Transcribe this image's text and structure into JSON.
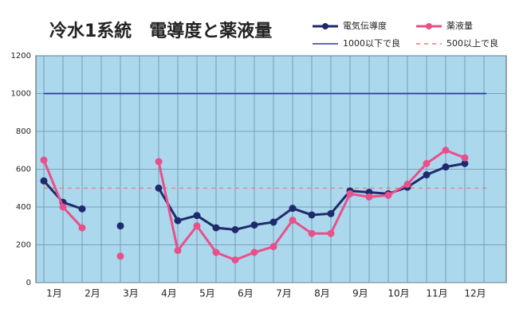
{
  "chart_data": {
    "type": "line",
    "title": "冷水1系統　電導度と薬液量",
    "categories": [
      "1月",
      null,
      "2月",
      null,
      "3月",
      null,
      "4月",
      null,
      "5月",
      null,
      "6月",
      null,
      "7月",
      null,
      "8月",
      null,
      "9月",
      null,
      "10月",
      null,
      "11月",
      null,
      "12月",
      null
    ],
    "series": [
      {
        "name": "電気伝導度",
        "color": "#1f2a6b",
        "values": [
          538,
          425,
          390,
          null,
          300,
          null,
          500,
          328,
          355,
          290,
          280,
          305,
          320,
          393,
          358,
          365,
          485,
          478,
          470,
          505,
          570,
          612,
          630,
          null
        ]
      },
      {
        "name": "薬液量",
        "color": "#e8508a",
        "values": [
          648,
          400,
          290,
          null,
          140,
          null,
          640,
          170,
          300,
          160,
          120,
          160,
          190,
          330,
          260,
          260,
          470,
          453,
          462,
          520,
          630,
          700,
          660,
          null
        ]
      }
    ],
    "reference_lines": [
      {
        "name": "1000以下で良",
        "value": 1000,
        "color": "#2a3a9a",
        "style": "solid"
      },
      {
        "name": "500以上で良",
        "value": 500,
        "color": "#f07860",
        "style": "dashed"
      }
    ],
    "ylim": [
      0,
      1200
    ],
    "yticks": [
      0,
      200,
      400,
      600,
      800,
      1000,
      1200
    ],
    "grid": true
  }
}
